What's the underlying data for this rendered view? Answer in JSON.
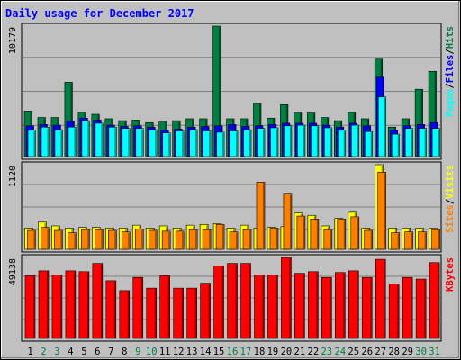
{
  "chart_data": {
    "type": "bar",
    "title": "Daily usage for December 2017",
    "categories": [
      "1",
      "2",
      "3",
      "4",
      "5",
      "6",
      "7",
      "8",
      "9",
      "10",
      "11",
      "12",
      "13",
      "14",
      "15",
      "16",
      "17",
      "18",
      "19",
      "20",
      "21",
      "22",
      "23",
      "24",
      "25",
      "26",
      "27",
      "28",
      "29",
      "30",
      "31"
    ],
    "weekend_days": [
      "2",
      "3",
      "9",
      "10",
      "16",
      "17",
      "23",
      "24",
      "30",
      "31"
    ],
    "panels": [
      {
        "id": "pages-files-hits",
        "axis_label": "10179",
        "ymax": 10179,
        "legend": [
          "Pages",
          "/",
          "Files",
          "/",
          "Hits"
        ],
        "series": [
          {
            "name": "Hits",
            "color": "#008040",
            "values": [
              3550,
              3050,
              3050,
              5800,
              3450,
              3300,
              2950,
              2800,
              2850,
              2650,
              2750,
              2800,
              2950,
              2950,
              10179,
              2950,
              2950,
              4150,
              3000,
              4050,
              3450,
              3400,
              3050,
              2800,
              3450,
              2950,
              7600,
              2300,
              2950,
              5250,
              6650
            ]
          },
          {
            "name": "Files",
            "color": "#0000ff",
            "values": [
              2400,
              2500,
              2450,
              2750,
              3000,
              2850,
              2450,
              2350,
              2400,
              2300,
              2050,
              2150,
              2300,
              2350,
              2400,
              2500,
              2350,
              2400,
              2500,
              2600,
              2600,
              2600,
              2450,
              2300,
              2600,
              2400,
              6200,
              2050,
              2400,
              2500,
              2650
            ]
          },
          {
            "name": "Pages",
            "color": "#00ffff",
            "values": [
              2050,
              2300,
              2100,
              2300,
              2800,
              2600,
              2300,
              2200,
              2200,
              2100,
              1850,
              2000,
              2100,
              2000,
              1900,
              2000,
              2100,
              2200,
              2250,
              2400,
              2450,
              2400,
              2250,
              2050,
              2450,
              1950,
              4650,
              1750,
              2200,
              2200,
              2200
            ]
          }
        ]
      },
      {
        "id": "visits-sites",
        "axis_label": "1120",
        "ymax": 1120,
        "legend": [
          "Sites",
          "/",
          "Visits"
        ],
        "series": [
          {
            "name": "Visits",
            "color": "#ffff00",
            "values": [
              280,
              360,
              310,
              280,
              290,
              290,
              280,
              280,
              320,
              280,
              310,
              280,
              320,
              330,
              340,
              280,
              320,
              280,
              290,
              300,
              480,
              450,
              310,
              410,
              490,
              280,
              1120,
              280,
              280,
              280,
              280
            ]
          },
          {
            "name": "Sites",
            "color": "#ff8000",
            "values": [
              250,
              290,
              250,
              220,
              260,
              260,
              250,
              230,
              270,
              250,
              240,
              240,
              260,
              260,
              330,
              230,
              260,
              890,
              280,
              730,
              440,
              400,
              260,
              400,
              430,
              250,
              1020,
              220,
              230,
              230,
              260
            ]
          }
        ]
      },
      {
        "id": "kbytes",
        "axis_label": "49138",
        "ymax": 49138,
        "legend": [
          "KBytes"
        ],
        "series": [
          {
            "name": "KBytes",
            "color": "#ff0000",
            "values": [
              38000,
              41000,
              38500,
              41000,
              40500,
              45500,
              35000,
              29000,
              37000,
              30500,
              38000,
              30500,
              30500,
              33500,
              44000,
              45500,
              45500,
              38500,
              38500,
              49138,
              39500,
              40500,
              37000,
              40000,
              41000,
              37000,
              48000,
              33000,
              37000,
              36000,
              46000
            ]
          }
        ]
      }
    ]
  }
}
